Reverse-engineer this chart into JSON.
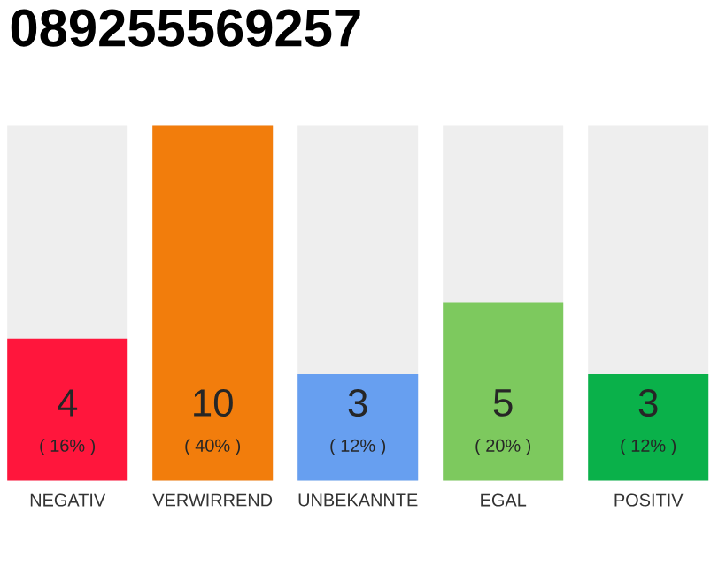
{
  "chart_data": {
    "type": "bar",
    "title": "089255569257",
    "categories": [
      "NEGATIV",
      "VERWIRREND",
      "UNBEKANNTE",
      "EGAL",
      "POSITIV"
    ],
    "values": [
      4,
      10,
      3,
      5,
      3
    ],
    "colors": [
      "#ff163c",
      "#f27d0c",
      "#679ff0",
      "#7dc95e",
      "#0ab14a"
    ],
    "data_labels": true,
    "annotations": [
      "( 16% )",
      "( 40% )",
      "( 12% )",
      "( 20% )",
      "( 12% )"
    ]
  }
}
